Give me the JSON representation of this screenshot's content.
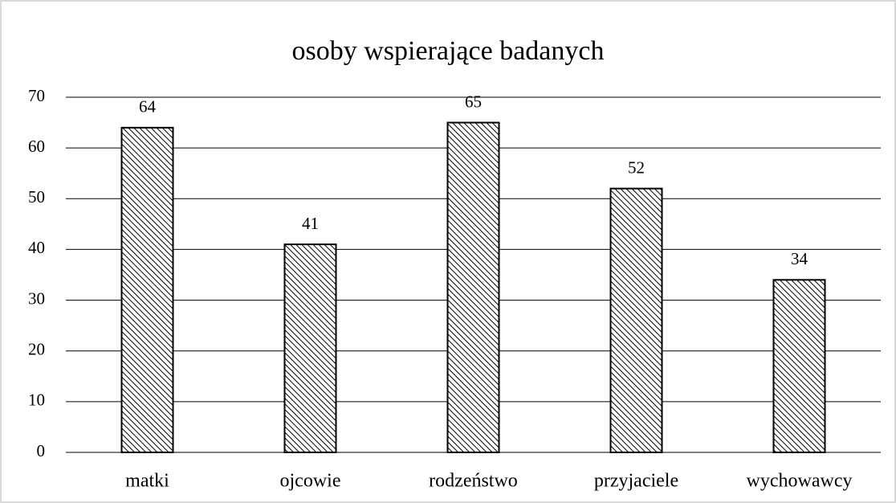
{
  "chart_data": {
    "type": "bar",
    "title": "osoby wspierające badanych",
    "categories": [
      "matki",
      "ojcowie",
      "rodzeństwo",
      "przyjaciele",
      "wychowawcy"
    ],
    "values": [
      64,
      41,
      65,
      52,
      34
    ],
    "color": "#000000",
    "ylim": [
      0,
      70
    ],
    "yticks": [
      0,
      10,
      20,
      30,
      40,
      50,
      60,
      70
    ],
    "grid": true
  }
}
